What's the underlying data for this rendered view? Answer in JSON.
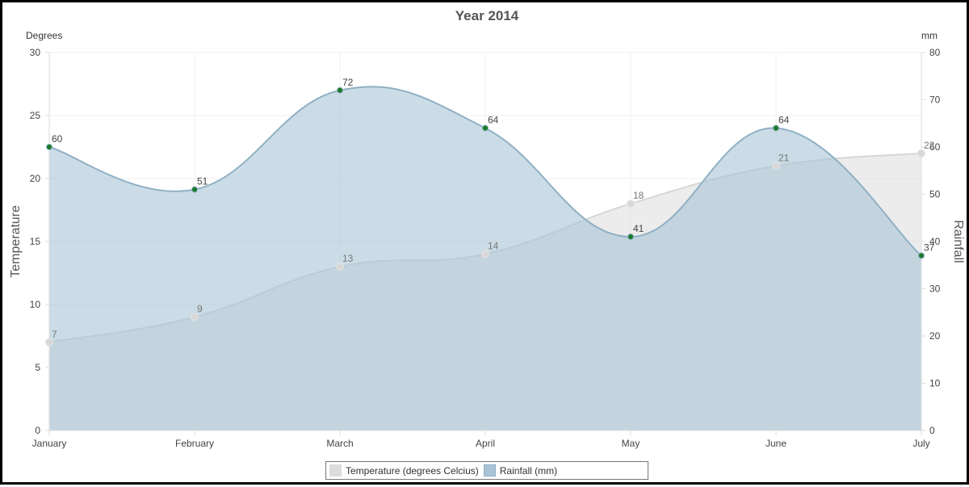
{
  "chart_data": {
    "type": "area",
    "title": "Year 2014",
    "categories": [
      "January",
      "February",
      "March",
      "April",
      "May",
      "June",
      "July"
    ],
    "left_axis": {
      "unit": "Degrees",
      "title": "Temperature",
      "ylim": [
        0,
        30
      ],
      "ticks": [
        0,
        5,
        10,
        15,
        20,
        25,
        30
      ]
    },
    "right_axis": {
      "unit": "mm",
      "title": "Rainfall",
      "ylim": [
        0,
        80
      ],
      "ticks": [
        0,
        10,
        20,
        30,
        40,
        50,
        60,
        70,
        80
      ]
    },
    "series": [
      {
        "name": "Temperature (degrees Celcius)",
        "axis": "left",
        "values": [
          7,
          9,
          13,
          14,
          18,
          21,
          22
        ],
        "fill": "#dcdcdc",
        "line": "#d6d6d6",
        "point": "#d8d8d8"
      },
      {
        "name": "Rainfall (mm)",
        "axis": "right",
        "values": [
          60,
          51,
          72,
          64,
          41,
          64,
          37
        ],
        "fill": "#a9c4d6",
        "line": "#8fb0c4",
        "point": "#1a7a2a"
      }
    ],
    "grid": true,
    "legend_position": "bottom"
  }
}
